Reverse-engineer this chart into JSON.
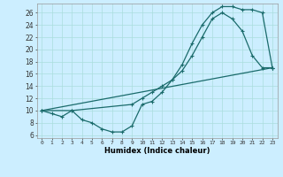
{
  "xlabel": "Humidex (Indice chaleur)",
  "background_color": "#cceeff",
  "line_color": "#1a6b6b",
  "grid_color": "#aadddd",
  "xlim": [
    -0.5,
    23.5
  ],
  "ylim": [
    5.5,
    27.5
  ],
  "yticks": [
    6,
    8,
    10,
    12,
    14,
    16,
    18,
    20,
    22,
    24,
    26
  ],
  "xticks": [
    0,
    1,
    2,
    3,
    4,
    5,
    6,
    7,
    8,
    9,
    10,
    11,
    12,
    13,
    14,
    15,
    16,
    17,
    18,
    19,
    20,
    21,
    22,
    23
  ],
  "line1_x": [
    0,
    1,
    2,
    3,
    4,
    5,
    6,
    7,
    8,
    9,
    10,
    11,
    12,
    13,
    14,
    15,
    16,
    17,
    18,
    19,
    20,
    21,
    22,
    23
  ],
  "line1_y": [
    10,
    9.5,
    9,
    10,
    8.5,
    8,
    7,
    6.5,
    6.5,
    7.5,
    11,
    11.5,
    13,
    15,
    17.5,
    21,
    24,
    26,
    27,
    27,
    26.5,
    26.5,
    26,
    17
  ],
  "line2_x": [
    0,
    3,
    9,
    10,
    11,
    12,
    13,
    14,
    15,
    16,
    17,
    18,
    19,
    20,
    21,
    22,
    23
  ],
  "line2_y": [
    10,
    10,
    11,
    12,
    13,
    14,
    15,
    16.5,
    19,
    22,
    25,
    26,
    25,
    23,
    19,
    17,
    17
  ],
  "line3_x": [
    0,
    23
  ],
  "line3_y": [
    10,
    17
  ],
  "marker": "+",
  "markersize": 3,
  "linewidth": 0.9
}
